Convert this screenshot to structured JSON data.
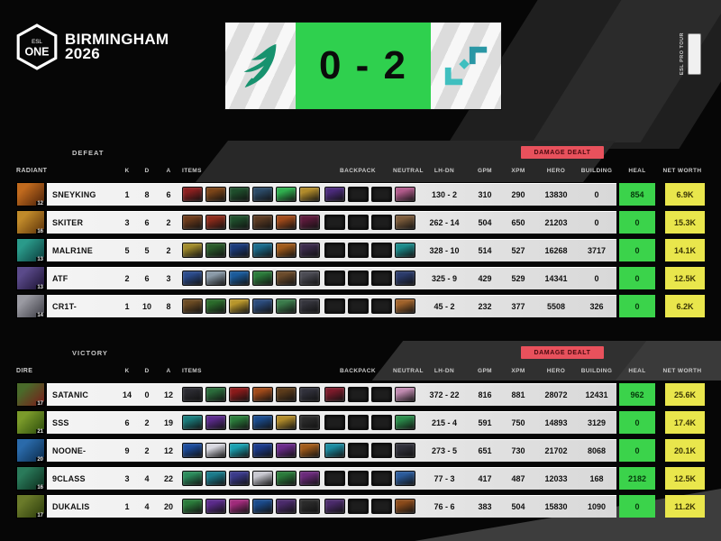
{
  "event": {
    "esl": "ESL",
    "one": "ONE",
    "title_line1": "BIRMINGHAM",
    "title_line2": "2026",
    "pro_tour": "ESL PRO TOUR"
  },
  "scoreboard": {
    "score": "0 - 2",
    "left_team": "Team Falcons",
    "right_team": "Tundra Esports"
  },
  "columns": {
    "k": "K",
    "d": "D",
    "a": "A",
    "items": "ITEMS",
    "backpack": "BACKPACK",
    "neutral": "NEUTRAL",
    "lh_dn": "LH-DN",
    "gpm": "GPM",
    "xpm": "XPM",
    "hero": "HERO",
    "building": "BUILDING",
    "heal": "HEAL",
    "net_worth": "NET WORTH",
    "damage_dealt": "DAMAGE DEALT"
  },
  "colors": {
    "score_green": "#2fd04e",
    "heal_green": "#3bd34b",
    "net_worth_yellow": "#e9e64c",
    "damage_badge_red": "#e8515c",
    "falcons_green": "#17926e",
    "tundra_teal": "#3fbfbf"
  },
  "teams": [
    {
      "side": "RADIANT",
      "result": "DEFEAT",
      "players": [
        {
          "name": "SNEYKING",
          "level": "12",
          "k": "1",
          "d": "8",
          "a": "6",
          "lh_dn": "130 - 2",
          "gpm": "310",
          "xpm": "290",
          "hero_dmg": "13830",
          "building_dmg": "0",
          "heal": "854",
          "net_worth": "6.9K",
          "portrait": [
            "#c06a1e",
            "#4a2008"
          ],
          "items": [
            "#8a1f1f",
            "#7a4418",
            "#1e4d2b",
            "#2b4a66",
            "#2fae4e",
            "#b08a2a"
          ],
          "backpack": [
            "#4a2a7a",
            null,
            null
          ],
          "neutral": "#b05a8a"
        },
        {
          "name": "SKITER",
          "level": "16",
          "k": "3",
          "d": "6",
          "a": "2",
          "lh_dn": "262 - 14",
          "gpm": "504",
          "xpm": "650",
          "hero_dmg": "21203",
          "building_dmg": "0",
          "heal": "0",
          "net_worth": "15.3K",
          "portrait": [
            "#c08a2a",
            "#5a3008"
          ],
          "items": [
            "#6b3a1a",
            "#8a2a1a",
            "#1e4d2b",
            "#5a3a22",
            "#a04a1a",
            "#5a1a3a"
          ],
          "backpack": [
            null,
            null,
            null
          ],
          "neutral": "#7a5a3a"
        },
        {
          "name": "MALR1NE",
          "level": "13",
          "k": "5",
          "d": "5",
          "a": "2",
          "lh_dn": "328 - 10",
          "gpm": "514",
          "xpm": "527",
          "hero_dmg": "16268",
          "building_dmg": "3717",
          "heal": "0",
          "net_worth": "14.1K",
          "portrait": [
            "#2a9a8a",
            "#0a3a3a"
          ],
          "items": [
            "#a08a2a",
            "#2a5a2a",
            "#1a3a7a",
            "#1a6a8a",
            "#a05a1a",
            "#3a2a4a"
          ],
          "backpack": [
            null,
            null,
            null
          ],
          "neutral": "#1a8a8a"
        },
        {
          "name": "ATF",
          "level": "13",
          "k": "2",
          "d": "6",
          "a": "3",
          "lh_dn": "325 - 9",
          "gpm": "429",
          "xpm": "529",
          "hero_dmg": "14341",
          "building_dmg": "0",
          "heal": "0",
          "net_worth": "12.5K",
          "portrait": [
            "#5a4a8a",
            "#1a1030"
          ],
          "items": [
            "#2a4a8a",
            "#8a9aa8",
            "#1a5a9a",
            "#2a7a3a",
            "#6a4a2a",
            "#4a4a52"
          ],
          "backpack": [
            null,
            null,
            null
          ],
          "neutral": "#2a3a6a"
        },
        {
          "name": "CR1T-",
          "level": "14",
          "k": "1",
          "d": "10",
          "a": "8",
          "lh_dn": "45 - 2",
          "gpm": "232",
          "xpm": "377",
          "hero_dmg": "5508",
          "building_dmg": "326",
          "heal": "0",
          "net_worth": "6.2K",
          "portrait": [
            "#9a9aa2",
            "#3a3a42"
          ],
          "items": [
            "#6a4a22",
            "#2a6a2a",
            "#b8962a",
            "#2a4a7a",
            "#3a7a4a",
            "#34343c"
          ],
          "backpack": [
            null,
            null,
            null
          ],
          "neutral": "#a0622a"
        }
      ]
    },
    {
      "side": "DIRE",
      "result": "VICTORY",
      "players": [
        {
          "name": "SATANIC",
          "level": "17",
          "k": "14",
          "d": "0",
          "a": "12",
          "lh_dn": "372 - 22",
          "gpm": "816",
          "xpm": "881",
          "hero_dmg": "28072",
          "building_dmg": "12431",
          "heal": "962",
          "net_worth": "25.6K",
          "portrait": [
            "#4a6a2a",
            "#7a1a1a"
          ],
          "items": [
            "#2a2a30",
            "#2a6a3a",
            "#8a1a1a",
            "#a04a1a",
            "#5a3a1a",
            "#30303a"
          ],
          "backpack": [
            "#7a1a2a",
            null,
            null
          ],
          "neutral": "#c08ab0"
        },
        {
          "name": "SSS",
          "level": "21",
          "k": "6",
          "d": "2",
          "a": "19",
          "lh_dn": "215 - 4",
          "gpm": "591",
          "xpm": "750",
          "hero_dmg": "14893",
          "building_dmg": "3129",
          "heal": "0",
          "net_worth": "17.4K",
          "portrait": [
            "#7a9a2a",
            "#2a4a0a"
          ],
          "items": [
            "#1a7a7a",
            "#5a2a8a",
            "#2a7a3a",
            "#1a4a8a",
            "#b08a2a",
            "#2a2a2a"
          ],
          "backpack": [
            null,
            null,
            null
          ],
          "neutral": "#2a8a4a"
        },
        {
          "name": "NOONE-",
          "level": "20",
          "k": "9",
          "d": "2",
          "a": "12",
          "lh_dn": "273 - 5",
          "gpm": "651",
          "xpm": "730",
          "hero_dmg": "21702",
          "building_dmg": "8068",
          "heal": "0",
          "net_worth": "20.1K",
          "portrait": [
            "#2a6aaa",
            "#0a2a4a"
          ],
          "items": [
            "#1a4a9a",
            "#d8d8e0",
            "#1aa0b0",
            "#1a3a8a",
            "#6a2a8a",
            "#a05a1a"
          ],
          "backpack": [
            "#1a8aa0",
            null,
            null
          ],
          "neutral": "#30303a"
        },
        {
          "name": "9CLASS",
          "level": "16",
          "k": "3",
          "d": "4",
          "a": "22",
          "lh_dn": "77 - 3",
          "gpm": "417",
          "xpm": "487",
          "hero_dmg": "12033",
          "building_dmg": "168",
          "heal": "2182",
          "net_worth": "12.5K",
          "portrait": [
            "#2a7a5a",
            "#0a2a1a"
          ],
          "items": [
            "#2a8a5a",
            "#1a7a8a",
            "#3a3a8a",
            "#c8c8d0",
            "#2a7a3a",
            "#6a2a7a"
          ],
          "backpack": [
            null,
            null,
            null
          ],
          "neutral": "#2a5a9a"
        },
        {
          "name": "DUKALIS",
          "level": "17",
          "k": "1",
          "d": "4",
          "a": "20",
          "lh_dn": "76 - 6",
          "gpm": "383",
          "xpm": "504",
          "hero_dmg": "15830",
          "building_dmg": "1090",
          "heal": "0",
          "net_worth": "11.2K",
          "portrait": [
            "#6a7a2a",
            "#2a3a0a"
          ],
          "items": [
            "#2a7a3a",
            "#5a2a8a",
            "#a02a7a",
            "#1a4a8a",
            "#4a2a6a",
            "#2a2a2a"
          ],
          "backpack": [
            "#4a2a6a",
            null,
            null
          ],
          "neutral": "#8a4a1a"
        }
      ]
    }
  ]
}
